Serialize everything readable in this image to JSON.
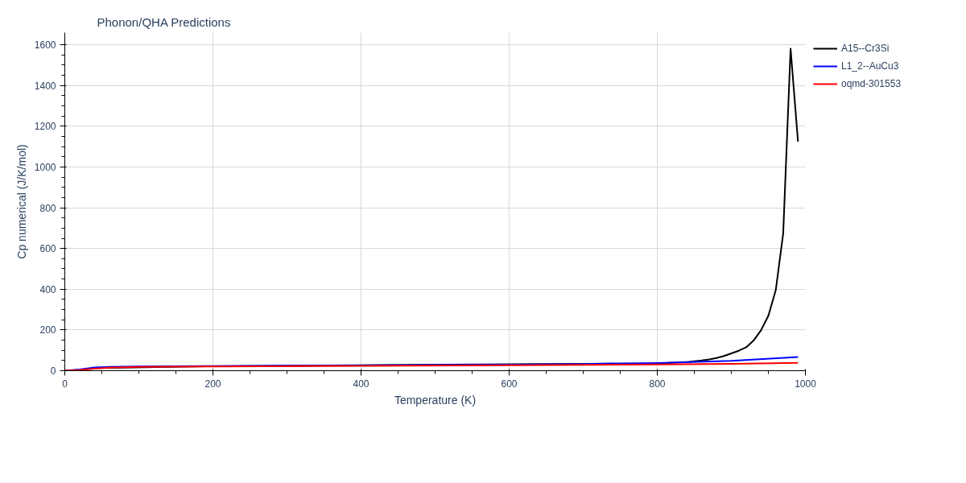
{
  "chart_data": {
    "type": "line",
    "title": "Phonon/QHA Predictions",
    "xlabel": "Temperature (K)",
    "ylabel": "Cp numerical (J/K/mol)",
    "xlim": [
      0,
      1000
    ],
    "xticks": [
      0,
      200,
      400,
      600,
      800,
      1000
    ],
    "ylim": [
      0,
      1660
    ],
    "yticks": [
      0,
      200,
      400,
      600,
      800,
      1000,
      1200,
      1400,
      1600
    ],
    "grid": true,
    "legend": "top right",
    "series": [
      {
        "name": "A15--Cr3Si",
        "color": "#000000",
        "x": [
          0,
          20,
          40,
          200,
          800,
          840,
          850,
          860,
          870,
          880,
          890,
          900,
          910,
          920,
          930,
          940,
          950,
          960,
          970,
          980,
          990
        ],
        "values": [
          0,
          4,
          13,
          22,
          36,
          42,
          46,
          50,
          55,
          62,
          72,
          85,
          98,
          115,
          148,
          198,
          270,
          396,
          673,
          1581,
          1125
        ]
      },
      {
        "name": "L1_2--AuCu3",
        "color": "#0000ff",
        "x": [
          0,
          20,
          40,
          60,
          100,
          200,
          400,
          600,
          700,
          800,
          900,
          990
        ],
        "values": [
          0,
          6,
          16,
          19,
          21,
          23,
          26,
          30,
          33,
          38,
          48,
          67
        ]
      },
      {
        "name": "oqmd-301553",
        "color": "#ff0000",
        "x": [
          0,
          20,
          40,
          60,
          100,
          200,
          400,
          600,
          800,
          900,
          990
        ],
        "values": [
          0,
          3,
          10,
          15,
          19,
          21,
          24,
          27,
          31,
          34,
          39
        ]
      }
    ]
  }
}
